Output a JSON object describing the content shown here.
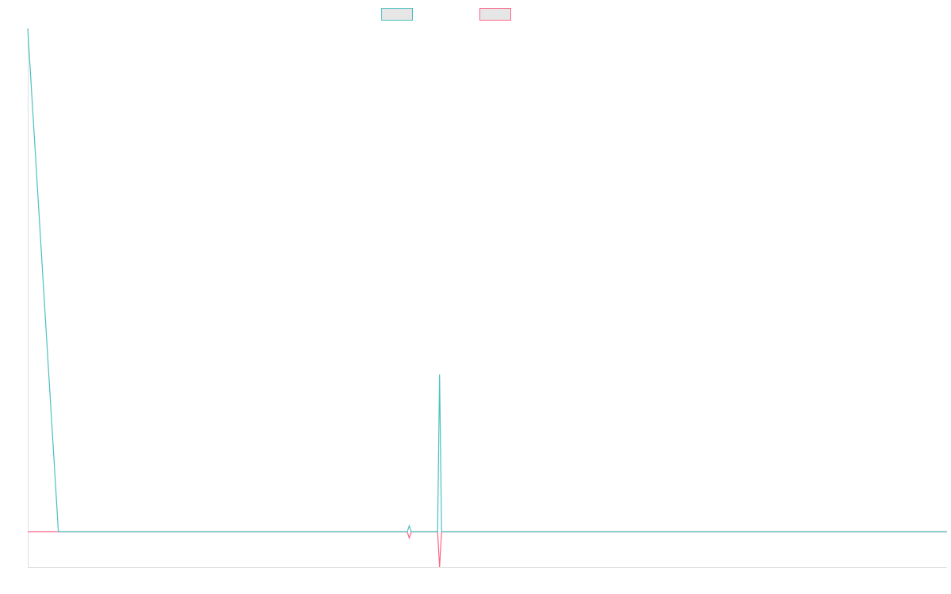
{
  "chart_data": {
    "type": "line",
    "x": [
      0,
      1,
      2,
      3,
      4,
      5,
      6,
      7,
      8,
      9,
      10,
      11,
      12,
      13,
      14,
      15,
      16,
      17,
      18,
      19,
      20,
      21,
      22,
      23,
      24,
      25,
      26,
      27,
      28,
      29,
      30
    ],
    "series": [
      {
        "values": [
          100,
          0,
          0,
          0,
          0,
          0,
          0,
          0,
          0,
          0,
          0,
          0,
          0,
          0,
          0,
          0,
          0,
          0,
          0,
          0,
          0,
          0,
          0,
          0,
          0,
          0,
          0,
          0,
          0,
          0,
          0
        ],
        "color": "#4bc0c0",
        "legend_fill": "#e6e6e6"
      },
      {
        "values": [
          0,
          0,
          0,
          0,
          0,
          0,
          0,
          0,
          0,
          0,
          0,
          0,
          0,
          0,
          0,
          0,
          0,
          0,
          0,
          0,
          0,
          0,
          0,
          0,
          0,
          0,
          0,
          0,
          0,
          0,
          0
        ],
        "color": "#ff6384",
        "legend_fill": "#e6e6e6"
      }
    ],
    "title": "",
    "xlabel": "",
    "ylabel": "",
    "ylim": [
      -7,
      100
    ],
    "grid": false,
    "legend": "top"
  },
  "spikes": [
    {
      "position": 0.415,
      "teal_value": 1.2,
      "pink_value": -1.2
    },
    {
      "position": 0.448,
      "teal_value": 31.3,
      "pink_value": -7
    }
  ]
}
